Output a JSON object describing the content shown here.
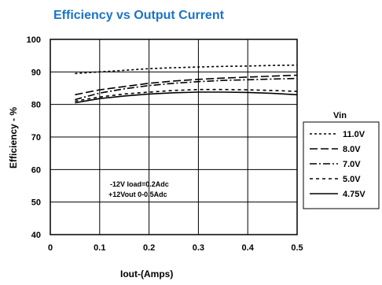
{
  "chart_data": {
    "type": "line",
    "title": "Efficiency vs Output Current",
    "xlabel": "Iout-(Amps)",
    "ylabel": "Efficiency - %",
    "xlim": [
      0,
      0.5
    ],
    "ylim": [
      40,
      100
    ],
    "x_ticks": [
      "0",
      "0.1",
      "0.2",
      "0.3",
      "0.4",
      "0.5"
    ],
    "y_ticks": [
      "40",
      "50",
      "60",
      "70",
      "80",
      "90",
      "100"
    ],
    "grid": true,
    "legend_title": "Vin",
    "legend_position": "right",
    "annotation": [
      "-12V load=0.2Adc",
      "+12Vout 0-0.5Adc"
    ],
    "x": [
      0.05,
      0.1,
      0.15,
      0.2,
      0.25,
      0.3,
      0.35,
      0.4,
      0.45,
      0.5
    ],
    "series": [
      {
        "name": "11.0V",
        "dash": "dotted",
        "values": [
          89.5,
          90.0,
          90.5,
          91.0,
          91.3,
          91.5,
          91.7,
          91.8,
          92.0,
          92.1
        ]
      },
      {
        "name": "8.0V",
        "dash": "longdash",
        "values": [
          83.0,
          84.5,
          85.5,
          86.5,
          87.2,
          87.7,
          88.1,
          88.4,
          88.7,
          89.0
        ]
      },
      {
        "name": "7.0V",
        "dash": "dashdot",
        "values": [
          81.5,
          83.5,
          84.8,
          85.8,
          86.5,
          87.0,
          87.4,
          87.6,
          87.8,
          88.0
        ]
      },
      {
        "name": "5.0V",
        "dash": "shortdash",
        "values": [
          81.0,
          82.3,
          83.2,
          83.8,
          84.3,
          84.6,
          84.6,
          84.5,
          84.3,
          84.0
        ]
      },
      {
        "name": "4.75V",
        "dash": "solid",
        "values": [
          80.5,
          81.8,
          82.6,
          83.2,
          83.6,
          83.8,
          83.8,
          83.7,
          83.4,
          83.0
        ]
      }
    ]
  }
}
